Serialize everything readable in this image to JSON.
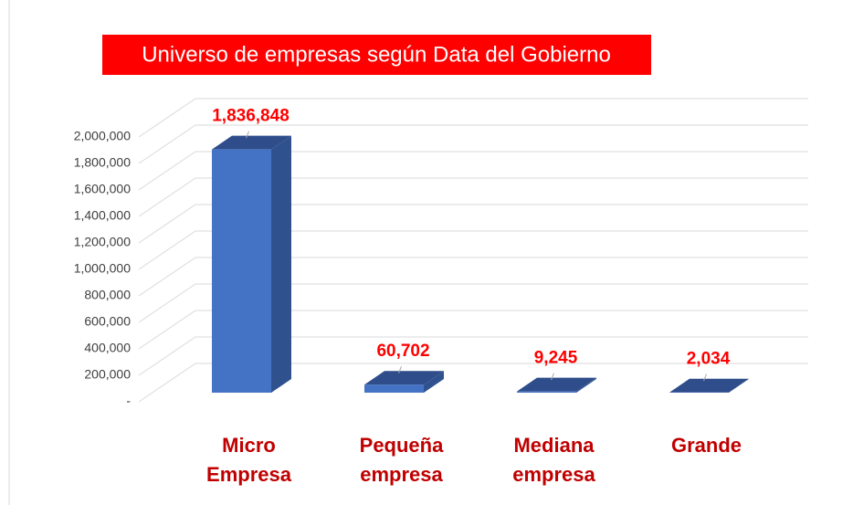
{
  "chart_data": {
    "type": "bar3d",
    "title": "Universo de empresas según Data del Gobierno",
    "categories": [
      "Micro Empresa",
      "Pequeña empresa",
      "Mediana empresa",
      "Grande"
    ],
    "values": [
      1836848,
      60702,
      9245,
      2034
    ],
    "value_labels": [
      "1,836,848",
      "60,702",
      "9,245",
      "2,034"
    ],
    "color": "#4472c4",
    "ylim": [
      0,
      2000000
    ],
    "yticks": [
      {
        "value": 0,
        "label": "-"
      },
      {
        "value": 200000,
        "label": "200,000"
      },
      {
        "value": 400000,
        "label": "400,000"
      },
      {
        "value": 600000,
        "label": "600,000"
      },
      {
        "value": 800000,
        "label": "800,000"
      },
      {
        "value": 1000000,
        "label": "1,000,000"
      },
      {
        "value": 1200000,
        "label": "1,200,000"
      },
      {
        "value": 1400000,
        "label": "1,400,000"
      },
      {
        "value": 1600000,
        "label": "1,600,000"
      },
      {
        "value": 1800000,
        "label": "1,800,000"
      },
      {
        "value": 2000000,
        "label": "2,000,000"
      }
    ],
    "grid": true
  }
}
